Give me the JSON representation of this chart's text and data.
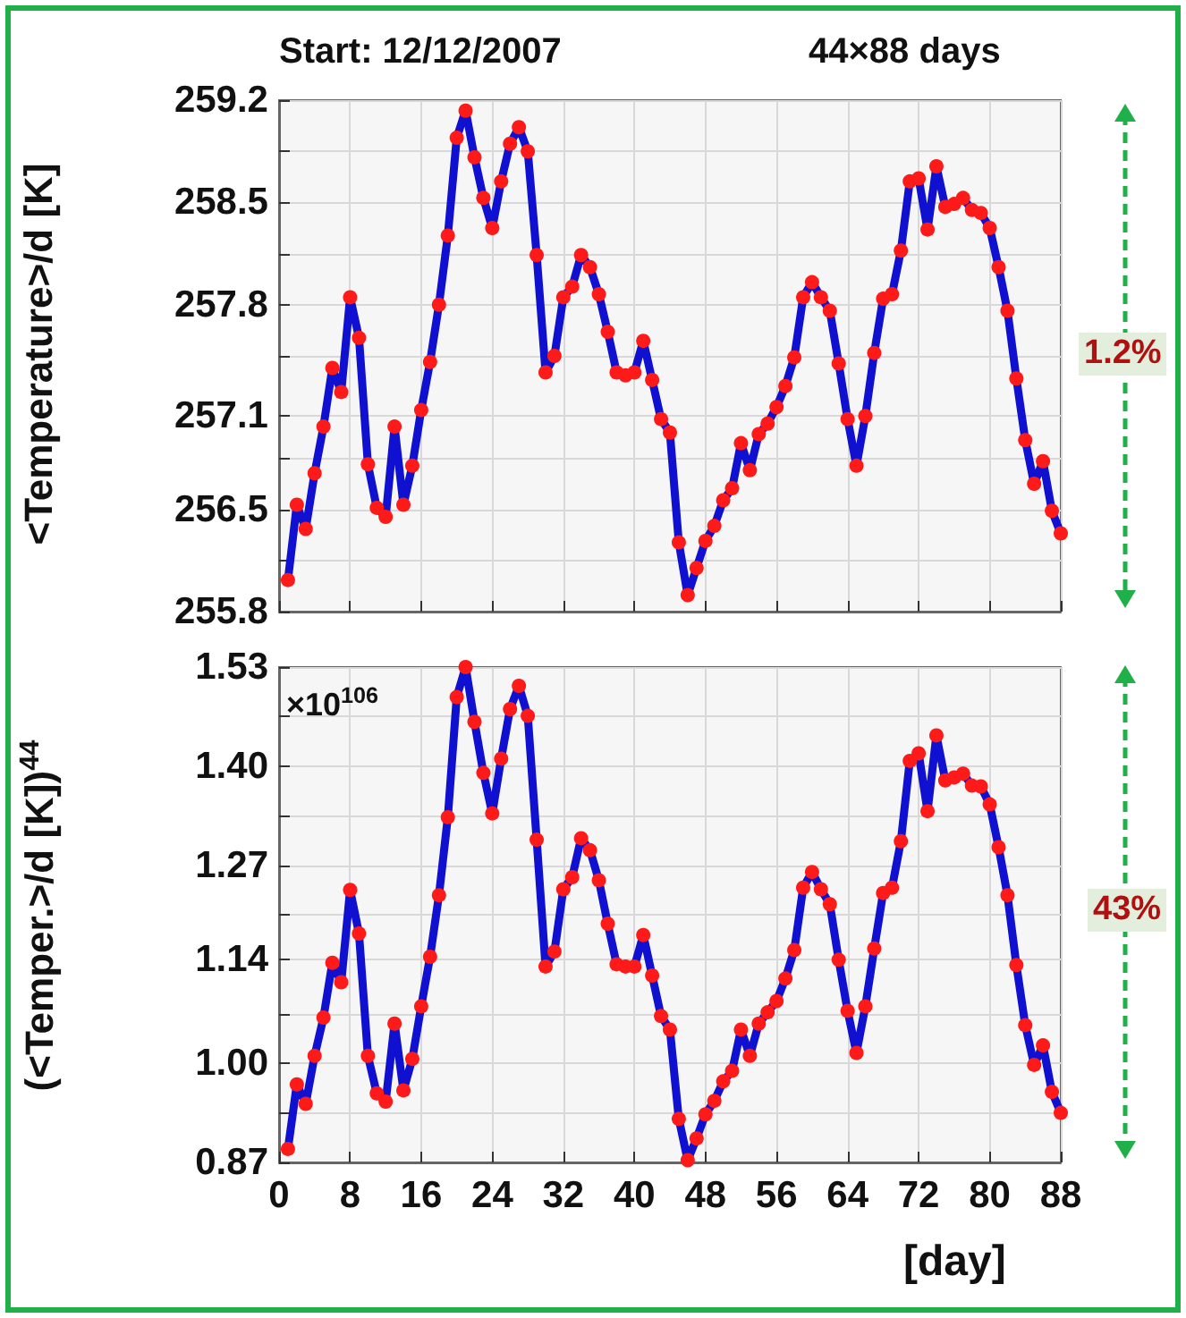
{
  "chart_data": [
    {
      "type": "line",
      "ylabel": "<Temperature>/d  [K]",
      "annotations": [
        "Start: 12/12/2007",
        "44×88 days",
        "1.2%"
      ],
      "x": [
        1,
        2,
        3,
        4,
        5,
        6,
        7,
        8,
        9,
        10,
        11,
        12,
        13,
        14,
        15,
        16,
        17,
        18,
        19,
        20,
        21,
        22,
        23,
        24,
        25,
        26,
        27,
        28,
        29,
        30,
        31,
        32,
        33,
        34,
        35,
        36,
        37,
        38,
        39,
        40,
        41,
        42,
        43,
        44,
        45,
        46,
        47,
        48,
        49,
        50,
        51,
        52,
        53,
        54,
        55,
        56,
        57,
        58,
        59,
        60,
        61,
        62,
        63,
        64,
        65,
        66,
        67,
        68,
        69,
        70,
        71,
        72,
        73,
        74,
        75,
        76,
        77,
        78,
        79,
        80,
        81,
        82,
        83,
        84,
        85,
        86,
        87,
        88
      ],
      "series": [
        {
          "color": "#1010d0",
          "values": [
            256.01,
            256.51,
            256.35,
            256.72,
            257.03,
            257.42,
            257.26,
            257.89,
            257.62,
            256.78,
            256.49,
            256.43,
            257.03,
            256.51,
            256.77,
            257.14,
            257.46,
            257.84,
            258.3,
            258.95,
            259.13,
            258.82,
            258.55,
            258.35,
            258.66,
            258.91,
            259.02,
            258.86,
            258.17,
            257.39,
            257.5,
            257.89,
            257.96,
            258.17,
            258.09,
            257.91,
            257.66,
            257.39,
            257.37,
            257.39,
            257.6,
            257.34,
            257.08,
            256.99,
            256.26,
            255.91,
            256.09,
            256.27,
            256.37,
            256.54,
            256.62,
            256.92,
            256.74,
            256.98,
            257.05,
            257.16,
            257.3,
            257.49,
            257.89,
            257.99,
            257.89,
            257.8,
            257.45,
            257.08,
            256.77,
            257.1,
            257.52,
            257.88,
            257.91,
            258.2,
            258.66,
            258.68,
            258.34,
            258.76,
            258.49,
            258.51,
            258.55,
            258.47,
            258.45,
            258.35,
            258.09,
            257.8,
            257.35,
            256.94,
            256.65,
            256.8,
            256.47,
            256.32
          ]
        }
      ],
      "xlim": [
        0,
        88
      ],
      "xticks": [
        0,
        8,
        16,
        24,
        32,
        40,
        48,
        56,
        64,
        72,
        80,
        88
      ],
      "ylim": [
        255.8,
        259.2
      ],
      "yticks": [
        255.8,
        {
          "value": 256.14,
          "label": null
        },
        {
          "value": 256.48,
          "label": "256.5"
        },
        {
          "value": 256.82,
          "label": null
        },
        257.1,
        {
          "value": 257.5,
          "label": null
        },
        {
          "value": 257.84,
          "label": "257.8"
        },
        {
          "value": 258.18,
          "label": null
        },
        {
          "value": 258.52,
          "label": "258.5"
        },
        {
          "value": 258.86,
          "label": null
        },
        259.2
      ],
      "grid": true,
      "marker": "circle",
      "tick_labels": "y"
    },
    {
      "type": "line",
      "ylabel": "(<Temper.>/d [K])$^{44}$",
      "xlabel": "[day]",
      "annotations": [
        "×10$^{106}$",
        "43%"
      ],
      "x": [
        1,
        2,
        3,
        4,
        5,
        6,
        7,
        8,
        9,
        10,
        11,
        12,
        13,
        14,
        15,
        16,
        17,
        18,
        19,
        20,
        21,
        22,
        23,
        24,
        25,
        26,
        27,
        28,
        29,
        30,
        31,
        32,
        33,
        34,
        35,
        36,
        37,
        38,
        39,
        40,
        41,
        42,
        43,
        44,
        45,
        46,
        47,
        48,
        49,
        50,
        51,
        52,
        53,
        54,
        55,
        56,
        57,
        58,
        59,
        60,
        61,
        62,
        63,
        64,
        65,
        66,
        67,
        68,
        69,
        70,
        71,
        72,
        73,
        74,
        75,
        76,
        77,
        78,
        79,
        80,
        81,
        82,
        83,
        84,
        85,
        86,
        87,
        88
      ],
      "series": [
        {
          "color": "#1010d0",
          "values": [
            0.888,
            0.974,
            0.948,
            1.012,
            1.063,
            1.136,
            1.11,
            1.233,
            1.175,
            1.012,
            0.962,
            0.951,
            1.055,
            0.966,
            1.008,
            1.078,
            1.144,
            1.226,
            1.33,
            1.49,
            1.53,
            1.457,
            1.389,
            1.335,
            1.408,
            1.474,
            1.505,
            1.465,
            1.3,
            1.131,
            1.151,
            1.234,
            1.25,
            1.302,
            1.286,
            1.246,
            1.188,
            1.134,
            1.131,
            1.131,
            1.173,
            1.119,
            1.065,
            1.047,
            0.928,
            0.873,
            0.902,
            0.934,
            0.952,
            0.978,
            0.992,
            1.047,
            1.012,
            1.055,
            1.07,
            1.085,
            1.115,
            1.153,
            1.236,
            1.257,
            1.234,
            1.214,
            1.14,
            1.072,
            1.016,
            1.078,
            1.155,
            1.229,
            1.236,
            1.298,
            1.405,
            1.415,
            1.338,
            1.439,
            1.379,
            1.383,
            1.388,
            1.372,
            1.371,
            1.347,
            1.29,
            1.226,
            1.133,
            1.053,
            1.0,
            1.026,
            0.964,
            0.936
          ]
        }
      ],
      "xlim": [
        0,
        88
      ],
      "xticks": [
        0,
        8,
        16,
        24,
        32,
        40,
        48,
        56,
        64,
        72,
        80,
        88
      ],
      "ylim": [
        0.87,
        1.53
      ],
      "yticks": [
        0.87,
        {
          "value": 0.936,
          "label": null
        },
        {
          "value": 1.002,
          "label": "1.00"
        },
        {
          "value": 1.068,
          "label": null
        },
        1.14,
        {
          "value": 1.2,
          "label": null
        },
        {
          "value": 1.266,
          "label": "1.27"
        },
        {
          "value": 1.332,
          "label": null
        },
        {
          "value": 1.398,
          "label": "1.40"
        },
        {
          "value": 1.464,
          "label": null
        },
        1.53
      ],
      "grid": true,
      "marker": "circle"
    }
  ]
}
